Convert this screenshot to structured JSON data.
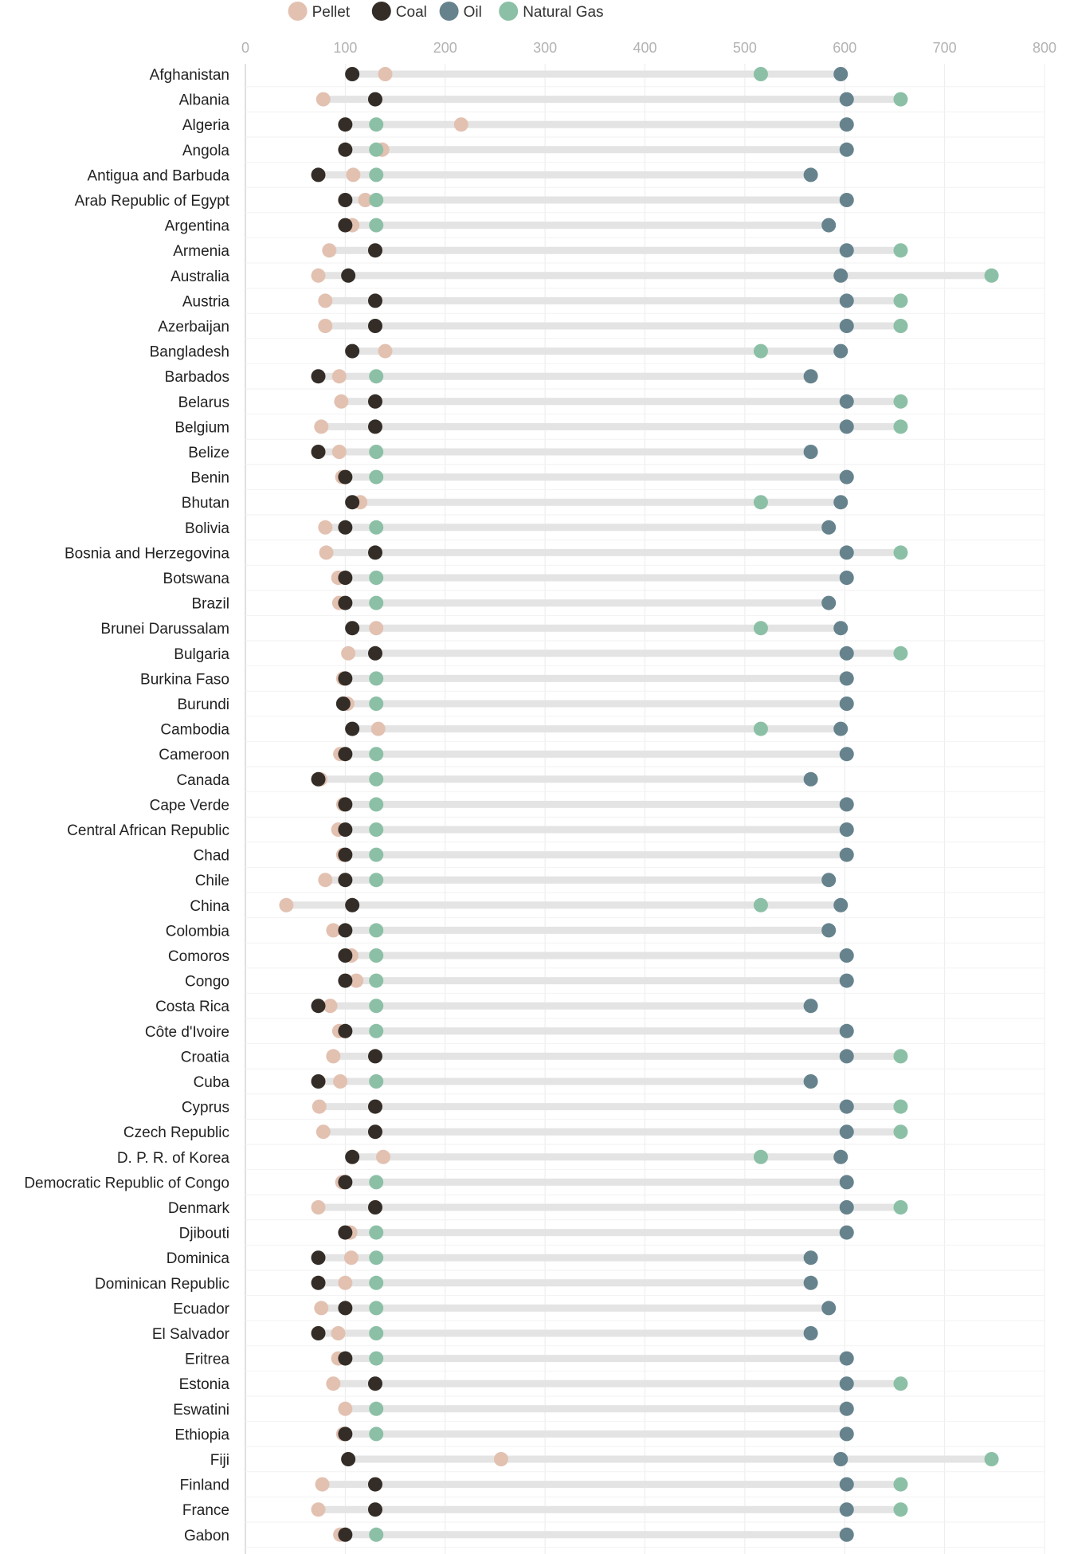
{
  "chart_data": {
    "type": "dot-range",
    "title": "",
    "xlabel": "",
    "ylabel": "",
    "xlim": [
      0,
      800
    ],
    "ticks": [
      0,
      100,
      200,
      300,
      400,
      500,
      600,
      700,
      800
    ],
    "grid": true,
    "legend": {
      "position": "top-center",
      "entries": [
        {
          "key": "pellet",
          "label": "Pellet",
          "color": "#e2c1b1"
        },
        {
          "key": "coal",
          "label": "Coal",
          "color": "#342d27"
        },
        {
          "key": "oil",
          "label": "Oil",
          "color": "#66838d"
        },
        {
          "key": "gas",
          "label": "Natural Gas",
          "color": "#8cc0a6"
        }
      ]
    },
    "range_bar_color": "#e4e4e4",
    "countries": [
      {
        "name": "Afghanistan",
        "pellet": 140,
        "coal": 107,
        "oil": 596,
        "gas": 516
      },
      {
        "name": "Albania",
        "pellet": 78,
        "coal": 130,
        "oil": 602,
        "gas": 656
      },
      {
        "name": "Algeria",
        "pellet": 216,
        "coal": 100,
        "oil": 602,
        "gas": 131
      },
      {
        "name": "Angola",
        "pellet": 137,
        "coal": 100,
        "oil": 602,
        "gas": 131
      },
      {
        "name": "Antigua and Barbuda",
        "pellet": 108,
        "coal": 73,
        "oil": 566,
        "gas": 131
      },
      {
        "name": "Arab Republic of Egypt",
        "pellet": 120,
        "coal": 100,
        "oil": 602,
        "gas": 131
      },
      {
        "name": "Argentina",
        "pellet": 107,
        "coal": 100,
        "oil": 584,
        "gas": 131
      },
      {
        "name": "Armenia",
        "pellet": 84,
        "coal": 130,
        "oil": 602,
        "gas": 656
      },
      {
        "name": "Australia",
        "pellet": 73,
        "coal": 103,
        "oil": 596,
        "gas": 747
      },
      {
        "name": "Austria",
        "pellet": 80,
        "coal": 130,
        "oil": 602,
        "gas": 656
      },
      {
        "name": "Azerbaijan",
        "pellet": 80,
        "coal": 130,
        "oil": 602,
        "gas": 656
      },
      {
        "name": "Bangladesh",
        "pellet": 140,
        "coal": 107,
        "oil": 596,
        "gas": 516
      },
      {
        "name": "Barbados",
        "pellet": 94,
        "coal": 73,
        "oil": 566,
        "gas": 131
      },
      {
        "name": "Belarus",
        "pellet": 96,
        "coal": 130,
        "oil": 602,
        "gas": 656
      },
      {
        "name": "Belgium",
        "pellet": 76,
        "coal": 130,
        "oil": 602,
        "gas": 656
      },
      {
        "name": "Belize",
        "pellet": 94,
        "coal": 73,
        "oil": 566,
        "gas": 131
      },
      {
        "name": "Benin",
        "pellet": 97,
        "coal": 100,
        "oil": 602,
        "gas": 131
      },
      {
        "name": "Bhutan",
        "pellet": 115,
        "coal": 107,
        "oil": 596,
        "gas": 516
      },
      {
        "name": "Bolivia",
        "pellet": 80,
        "coal": 100,
        "oil": 584,
        "gas": 131
      },
      {
        "name": "Bosnia and Herzegovina",
        "pellet": 81,
        "coal": 130,
        "oil": 602,
        "gas": 656
      },
      {
        "name": "Botswana",
        "pellet": 93,
        "coal": 100,
        "oil": 602,
        "gas": 131
      },
      {
        "name": "Brazil",
        "pellet": 94,
        "coal": 100,
        "oil": 584,
        "gas": 131
      },
      {
        "name": "Brunei Darussalam",
        "pellet": 131,
        "coal": 107,
        "oil": 596,
        "gas": 516
      },
      {
        "name": "Bulgaria",
        "pellet": 103,
        "coal": 130,
        "oil": 602,
        "gas": 656
      },
      {
        "name": "Burkina Faso",
        "pellet": 98,
        "coal": 100,
        "oil": 602,
        "gas": 131
      },
      {
        "name": "Burundi",
        "pellet": 102,
        "coal": 98,
        "oil": 602,
        "gas": 131
      },
      {
        "name": "Cambodia",
        "pellet": 133,
        "coal": 107,
        "oil": 596,
        "gas": 516
      },
      {
        "name": "Cameroon",
        "pellet": 95,
        "coal": 100,
        "oil": 602,
        "gas": 131
      },
      {
        "name": "Canada",
        "pellet": 75,
        "coal": 73,
        "oil": 566,
        "gas": 131
      },
      {
        "name": "Cape Verde",
        "pellet": 98,
        "coal": 100,
        "oil": 602,
        "gas": 131
      },
      {
        "name": "Central African Republic",
        "pellet": 93,
        "coal": 100,
        "oil": 602,
        "gas": 131
      },
      {
        "name": "Chad",
        "pellet": 98,
        "coal": 100,
        "oil": 602,
        "gas": 131
      },
      {
        "name": "Chile",
        "pellet": 80,
        "coal": 100,
        "oil": 584,
        "gas": 131
      },
      {
        "name": "China",
        "pellet": 41,
        "coal": 107,
        "oil": 596,
        "gas": 516
      },
      {
        "name": "Colombia",
        "pellet": 88,
        "coal": 100,
        "oil": 584,
        "gas": 131
      },
      {
        "name": "Comoros",
        "pellet": 106,
        "coal": 100,
        "oil": 602,
        "gas": 131
      },
      {
        "name": "Congo",
        "pellet": 111,
        "coal": 100,
        "oil": 602,
        "gas": 131
      },
      {
        "name": "Costa Rica",
        "pellet": 85,
        "coal": 73,
        "oil": 566,
        "gas": 131
      },
      {
        "name": "Côte d'Ivoire",
        "pellet": 94,
        "coal": 100,
        "oil": 602,
        "gas": 131
      },
      {
        "name": "Croatia",
        "pellet": 88,
        "coal": 130,
        "oil": 602,
        "gas": 656
      },
      {
        "name": "Cuba",
        "pellet": 95,
        "coal": 73,
        "oil": 566,
        "gas": 131
      },
      {
        "name": "Cyprus",
        "pellet": 74,
        "coal": 130,
        "oil": 602,
        "gas": 656
      },
      {
        "name": "Czech Republic",
        "pellet": 78,
        "coal": 130,
        "oil": 602,
        "gas": 656
      },
      {
        "name": "D. P. R. of Korea",
        "pellet": 138,
        "coal": 107,
        "oil": 596,
        "gas": 516
      },
      {
        "name": "Democratic Republic of Congo",
        "pellet": 97,
        "coal": 100,
        "oil": 602,
        "gas": 131
      },
      {
        "name": "Denmark",
        "pellet": 73,
        "coal": 130,
        "oil": 602,
        "gas": 656
      },
      {
        "name": "Djibouti",
        "pellet": 105,
        "coal": 100,
        "oil": 602,
        "gas": 131
      },
      {
        "name": "Dominica",
        "pellet": 106,
        "coal": 73,
        "oil": 566,
        "gas": 131
      },
      {
        "name": "Dominican Republic",
        "pellet": 100,
        "coal": 73,
        "oil": 566,
        "gas": 131
      },
      {
        "name": "Ecuador",
        "pellet": 76,
        "coal": 100,
        "oil": 584,
        "gas": 131
      },
      {
        "name": "El Salvador",
        "pellet": 93,
        "coal": 73,
        "oil": 566,
        "gas": 131
      },
      {
        "name": "Eritrea",
        "pellet": 93,
        "coal": 100,
        "oil": 602,
        "gas": 131
      },
      {
        "name": "Estonia",
        "pellet": 88,
        "coal": 130,
        "oil": 602,
        "gas": 656
      },
      {
        "name": "Eswatini",
        "pellet": 100,
        "coal": null,
        "oil": 602,
        "gas": 131
      },
      {
        "name": "Ethiopia",
        "pellet": 98,
        "coal": 100,
        "oil": 602,
        "gas": 131
      },
      {
        "name": "Fiji",
        "pellet": 256,
        "coal": 103,
        "oil": 596,
        "gas": 747
      },
      {
        "name": "Finland",
        "pellet": 77,
        "coal": 130,
        "oil": 602,
        "gas": 656
      },
      {
        "name": "France",
        "pellet": 73,
        "coal": 130,
        "oil": 602,
        "gas": 656
      },
      {
        "name": "Gabon",
        "pellet": 95,
        "coal": 100,
        "oil": 602,
        "gas": 131
      }
    ]
  }
}
